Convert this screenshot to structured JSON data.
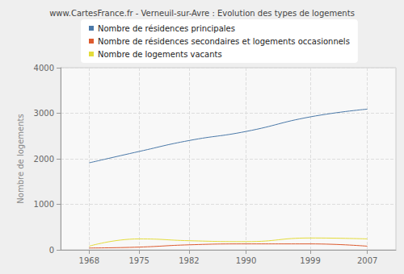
{
  "chart_data": {
    "type": "line",
    "title": "www.CartesFrance.fr - Verneuil-sur-Avre : Evolution des types de logements",
    "y_label": "Nombre de logements",
    "x": [
      1968,
      1975,
      1982,
      1990,
      1999,
      2007
    ],
    "series": [
      {
        "name": "Nombre de résidences principales",
        "color": "#4a78a8",
        "values": [
          1910,
          2160,
          2400,
          2600,
          2920,
          3090
        ]
      },
      {
        "name": "Nombre de résidences secondaires et logements occasionnels",
        "color": "#dd5a2e",
        "values": [
          40,
          60,
          110,
          130,
          130,
          80
        ]
      },
      {
        "name": "Nombre de logements vacants",
        "color": "#e4dc3a",
        "values": [
          80,
          240,
          200,
          180,
          260,
          240
        ]
      }
    ],
    "xlim": [
      1964,
      2011
    ],
    "xticks": [
      1968,
      1975,
      1982,
      1990,
      1999,
      2007
    ],
    "ylim": [
      0,
      4000
    ],
    "yticks": [
      0,
      1000,
      2000,
      3000,
      4000
    ],
    "grid": true,
    "legend": "top"
  }
}
